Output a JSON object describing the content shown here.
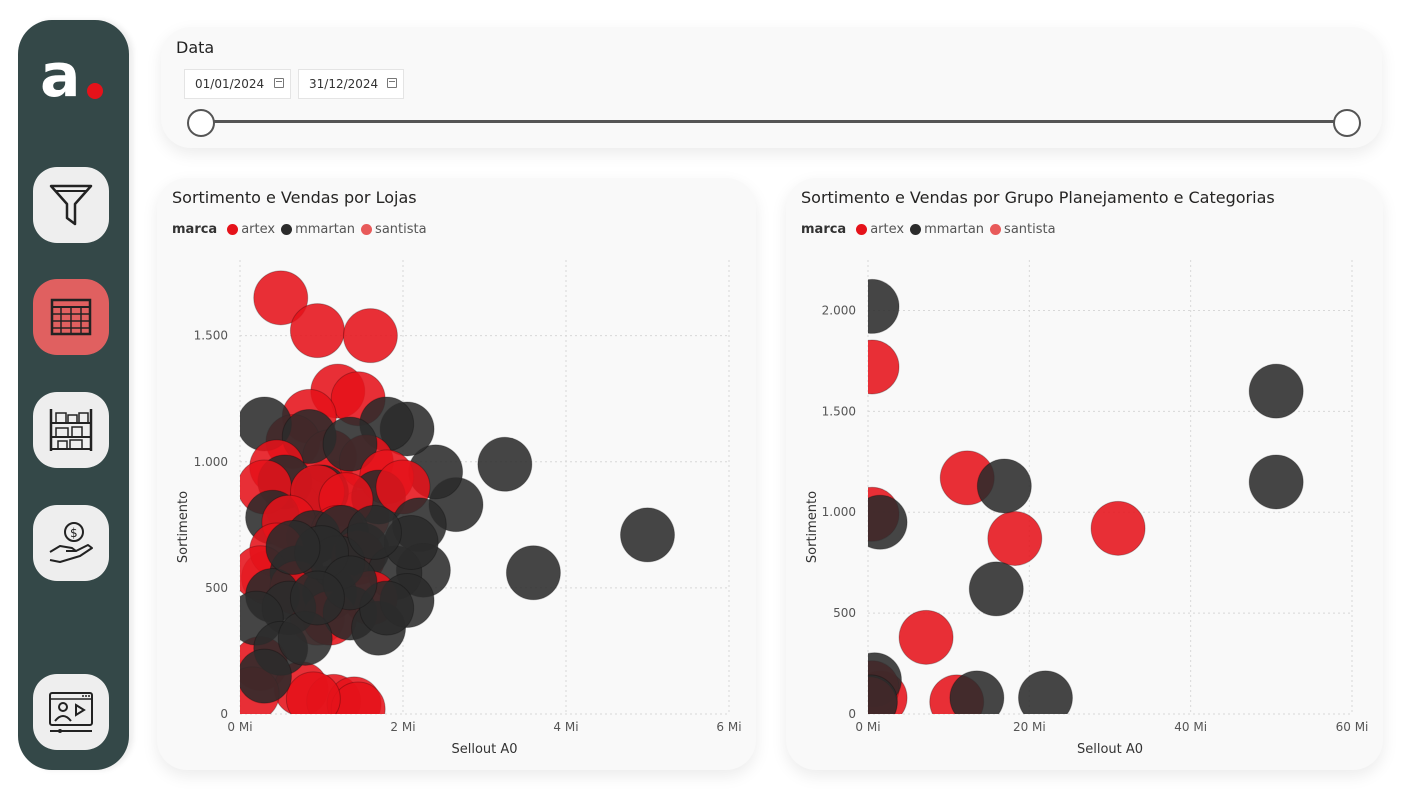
{
  "sidebar": {
    "logo_letter": "a",
    "items": [
      {
        "icon": "filter-icon",
        "active": false
      },
      {
        "icon": "table-icon",
        "active": true
      },
      {
        "icon": "shelves-icon",
        "active": false
      },
      {
        "icon": "money-hand-icon",
        "active": false
      },
      {
        "icon": "video-presentation-icon",
        "active": false
      }
    ]
  },
  "colors": {
    "sidebar": "#344848",
    "accent": "#e5121a",
    "active_nav": "#e06060",
    "artex": "#e5121a",
    "mmartan": "#2b2b2b",
    "santista": "#e85a5a"
  },
  "date_filter": {
    "title": "Data",
    "start": "01/01/2024",
    "end": "31/12/2024"
  },
  "chart_data": [
    {
      "type": "scatter",
      "title": "Sortimento e Vendas por Lojas",
      "legend_title": "marca",
      "xlabel": "Sellout A0",
      "ylabel": "Sortimento",
      "xlim": [
        0,
        6000000
      ],
      "ylim": [
        0,
        1800
      ],
      "xticks": [
        0,
        2000000,
        4000000,
        6000000
      ],
      "xtick_labels": [
        "0 Mi",
        "2 Mi",
        "4 Mi",
        "6 Mi"
      ],
      "yticks": [
        0,
        500,
        1000,
        1500
      ],
      "ytick_labels": [
        "0",
        "500",
        "1.000",
        "1.500"
      ],
      "series": [
        {
          "name": "artex",
          "points": [
            [
              500000,
              1650
            ],
            [
              950000,
              1520
            ],
            [
              1600000,
              1500
            ],
            [
              1200000,
              1280
            ],
            [
              1450000,
              1250
            ],
            [
              850000,
              1180
            ],
            [
              650000,
              1080
            ],
            [
              1100000,
              1020
            ],
            [
              1550000,
              1000
            ],
            [
              450000,
              980
            ],
            [
              1800000,
              940
            ],
            [
              300000,
              900
            ],
            [
              950000,
              880
            ],
            [
              1300000,
              850
            ],
            [
              2000000,
              900
            ],
            [
              600000,
              760
            ],
            [
              1200000,
              720
            ],
            [
              450000,
              650
            ],
            [
              1450000,
              620
            ],
            [
              250000,
              560
            ],
            [
              700000,
              500
            ],
            [
              1600000,
              460
            ],
            [
              1100000,
              380
            ],
            [
              250000,
              200
            ],
            [
              750000,
              100
            ],
            [
              1150000,
              50
            ],
            [
              1400000,
              40
            ],
            [
              1450000,
              20
            ],
            [
              150000,
              80
            ],
            [
              900000,
              60
            ]
          ]
        },
        {
          "name": "mmartan",
          "points": [
            [
              3250000,
              990
            ],
            [
              5000000,
              710
            ],
            [
              3600000,
              560
            ],
            [
              2650000,
              830
            ],
            [
              2400000,
              960
            ],
            [
              2050000,
              1130
            ],
            [
              1800000,
              1150
            ],
            [
              300000,
              1150
            ],
            [
              850000,
              1100
            ],
            [
              1350000,
              1070
            ],
            [
              550000,
              920
            ],
            [
              1000000,
              880
            ],
            [
              1700000,
              860
            ],
            [
              400000,
              780
            ],
            [
              2200000,
              750
            ],
            [
              2250000,
              570
            ],
            [
              900000,
              700
            ],
            [
              1250000,
              720
            ],
            [
              1500000,
              650
            ],
            [
              700000,
              560
            ],
            [
              1900000,
              560
            ],
            [
              1100000,
              480
            ],
            [
              400000,
              470
            ],
            [
              600000,
              420
            ],
            [
              1350000,
              400
            ],
            [
              1700000,
              340
            ],
            [
              2050000,
              450
            ],
            [
              200000,
              380
            ],
            [
              500000,
              260
            ],
            [
              800000,
              300
            ],
            [
              300000,
              150
            ],
            [
              1200000,
              600
            ],
            [
              1800000,
              420
            ],
            [
              1000000,
              640
            ],
            [
              650000,
              660
            ],
            [
              2100000,
              680
            ],
            [
              1650000,
              720
            ],
            [
              1350000,
              520
            ],
            [
              950000,
              460
            ]
          ]
        },
        {
          "name": "santista",
          "points": [
            [
              1100000,
              900
            ],
            [
              650000,
              820
            ],
            [
              1500000,
              780
            ],
            [
              350000,
              540
            ],
            [
              950000,
              380
            ]
          ]
        }
      ]
    },
    {
      "type": "scatter",
      "title": "Sortimento e Vendas por Grupo Planejamento e Categorias",
      "legend_title": "marca",
      "xlabel": "Sellout A0",
      "ylabel": "Sortimento",
      "xlim": [
        0,
        60000000
      ],
      "ylim": [
        0,
        2250
      ],
      "xticks": [
        0,
        20000000,
        40000000,
        60000000
      ],
      "xtick_labels": [
        "0 Mi",
        "20 Mi",
        "40 Mi",
        "60 Mi"
      ],
      "yticks": [
        0,
        500,
        1000,
        1500,
        2000
      ],
      "ytick_labels": [
        "0",
        "500",
        "1.000",
        "1.500",
        "2.000"
      ],
      "series": [
        {
          "name": "artex",
          "points": [
            [
              500000,
              1720
            ],
            [
              12300000,
              1170
            ],
            [
              18200000,
              870
            ],
            [
              31000000,
              920
            ],
            [
              7200000,
              380
            ],
            [
              11000000,
              60
            ],
            [
              500000,
              990
            ],
            [
              1500000,
              80
            ],
            [
              500000,
              130
            ],
            [
              200000,
              50
            ]
          ]
        },
        {
          "name": "mmartan",
          "points": [
            [
              500000,
              2020
            ],
            [
              50600000,
              1600
            ],
            [
              50600000,
              1150
            ],
            [
              16900000,
              1130
            ],
            [
              15900000,
              620
            ],
            [
              13500000,
              80
            ],
            [
              22000000,
              80
            ],
            [
              1500000,
              950
            ],
            [
              800000,
              170
            ],
            [
              300000,
              60
            ]
          ]
        },
        {
          "name": "santista",
          "points": []
        }
      ]
    }
  ]
}
